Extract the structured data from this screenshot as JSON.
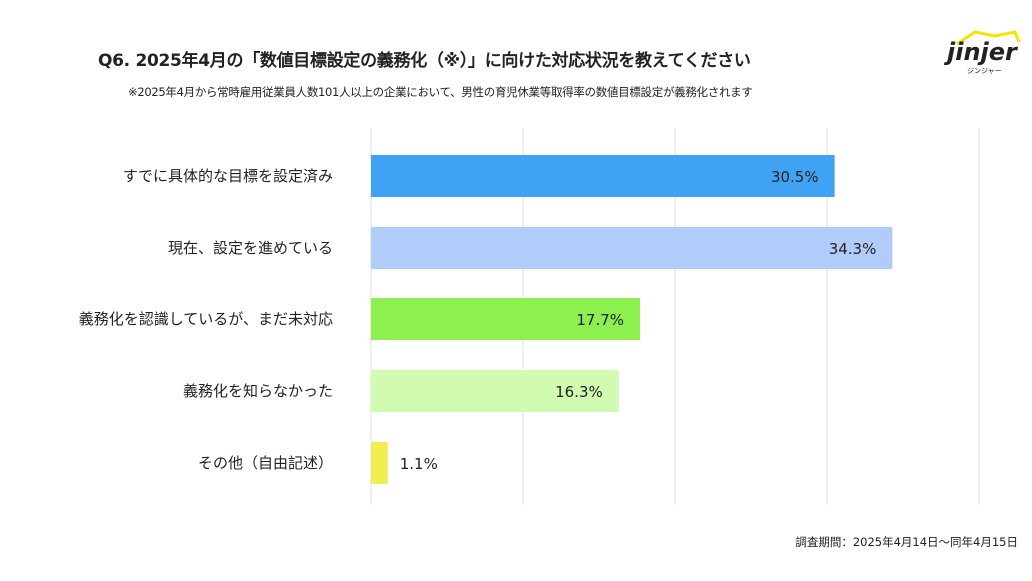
{
  "chart_data": {
    "type": "bar",
    "orientation": "horizontal",
    "title": "Q6. 2025年4月の「数値目標設定の義務化（※）」に向けた対応状況を教えてください",
    "subtitle": "※2025年4月から常時雇用従業員人数101人以上の企業において、男性の育児休業等取得率の数値目標設定が義務化されます",
    "categories": [
      "すでに具体的な目標を設定済み",
      "現在、設定を進めている",
      "義務化を認識しているが、まだ未対応",
      "義務化を知らなかった",
      "その他（自由記述）"
    ],
    "values": [
      30.5,
      34.3,
      17.7,
      16.3,
      1.1
    ],
    "value_labels": [
      "30.5%",
      "34.3%",
      "17.7%",
      "16.3%",
      "1.1%"
    ],
    "colors": [
      "#3fa2f4",
      "#b1cbfb",
      "#8ef04f",
      "#d2fbb2",
      "#f1ef4f"
    ],
    "xlim": [
      0,
      40
    ],
    "grid": true,
    "xlabel": "",
    "ylabel": ""
  },
  "logo": {
    "text": "jinjer",
    "sub": "ジンジャー",
    "accent": "#f5e400"
  },
  "footnote": "調査期間：2025年4月14日〜同年4月15日"
}
